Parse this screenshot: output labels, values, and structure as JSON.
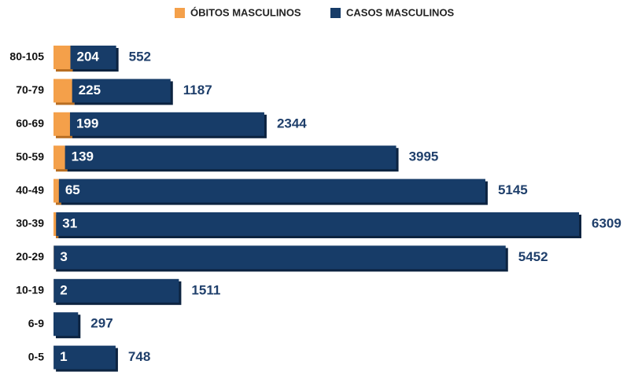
{
  "chart_data": {
    "type": "stacked-bar-horizontal",
    "categories": [
      "80-105",
      "70-79",
      "60-69",
      "50-59",
      "40-49",
      "30-39",
      "20-29",
      "10-19",
      "6-9",
      "0-5"
    ],
    "series": [
      {
        "name": "ÓBITOS MASCULINOS",
        "color": "#f4a04a",
        "values": [
          204,
          225,
          199,
          139,
          65,
          31,
          3,
          2,
          null,
          1
        ]
      },
      {
        "name": "CASOS MASCULINOS",
        "color": "#173c68",
        "values": [
          552,
          1187,
          2344,
          3995,
          5145,
          6309,
          5452,
          1511,
          297,
          748
        ]
      }
    ],
    "legend": "top"
  }
}
